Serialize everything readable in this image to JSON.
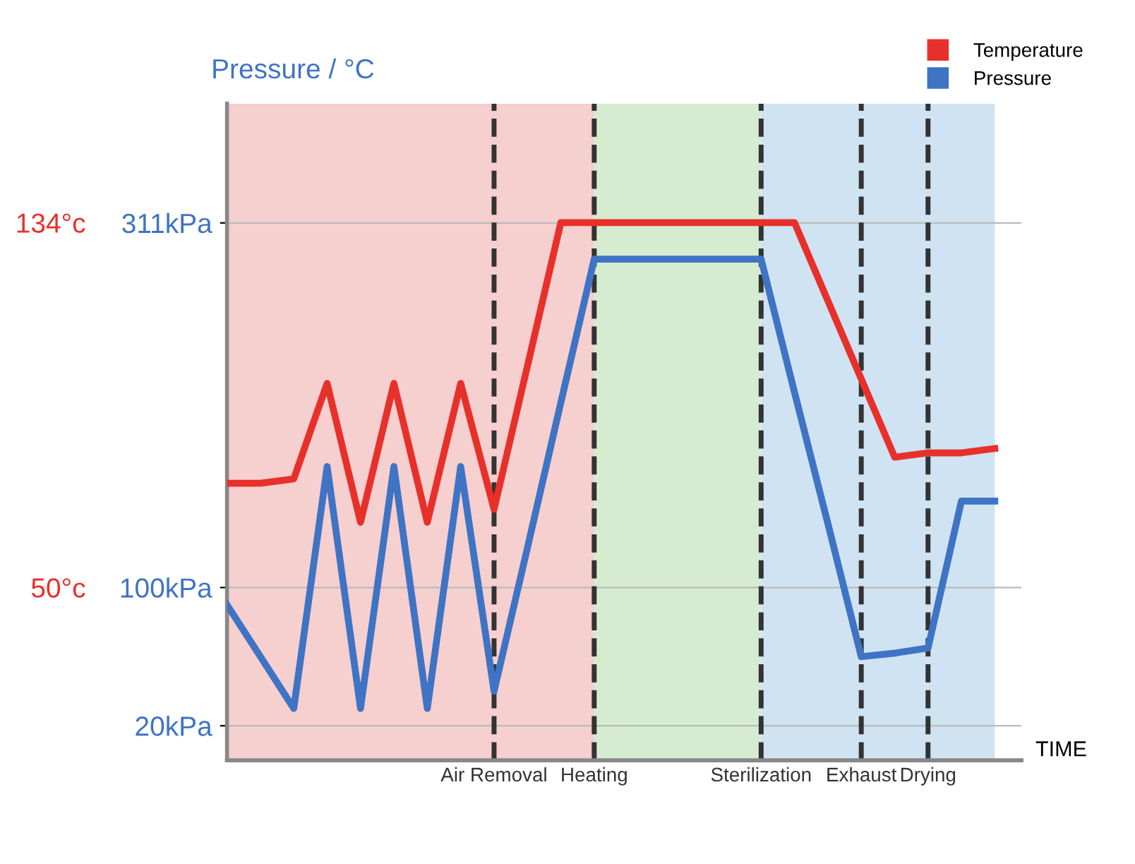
{
  "chart_data": {
    "type": "line",
    "ylabel": "Pressure / °C",
    "xlabel": "TIME",
    "categories": [
      null,
      null,
      null,
      null,
      null,
      null,
      null,
      null,
      "Air Removal",
      null,
      null,
      "Heating",
      null,
      null,
      null,
      null,
      "Sterilization",
      null,
      null,
      "Exhaust",
      null,
      "Drying",
      null,
      null
    ],
    "series": [
      {
        "name": "Temperature",
        "color": "#e8302a",
        "axis": "y2",
        "values": [
          74,
          74,
          75,
          97,
          65,
          97,
          65,
          97,
          68,
          101,
          134,
          134,
          134,
          134,
          134,
          134,
          134,
          134,
          116,
          98,
          80,
          81,
          81,
          82
        ]
      },
      {
        "name": "Pressure",
        "color": "#3f73c4",
        "values": [
          90,
          60,
          30,
          170,
          30,
          170,
          30,
          170,
          40,
          123,
          207,
          290,
          290,
          290,
          290,
          290,
          290,
          213,
          137,
          60,
          62,
          65,
          150,
          150
        ]
      }
    ],
    "ylim": [
      0,
      380
    ],
    "yticks": [
      {
        "value": 20,
        "label": "20kPa"
      },
      {
        "value": 100,
        "label": "100kPa"
      },
      {
        "value": 311,
        "label": "311kPa"
      }
    ],
    "y2lim": [
      10.2,
      161.4
    ],
    "y2ticks": [
      {
        "value": 50,
        "label": "50°c"
      },
      {
        "value": 134,
        "label": "134°c"
      }
    ],
    "grid": "y",
    "legend": "top right",
    "line_style": "solid",
    "ref_lines": [
      {
        "axis": "x",
        "value": "Air Removal",
        "line_style": "dashed"
      },
      {
        "axis": "x",
        "value": "Heating",
        "line_style": "dashed"
      },
      {
        "axis": "x",
        "value": "Sterilization",
        "line_style": "dashed"
      },
      {
        "axis": "x",
        "value": "Exhaust",
        "line_style": "dashed"
      },
      {
        "axis": "x",
        "value": "Drying",
        "line_style": "dashed"
      }
    ]
  }
}
